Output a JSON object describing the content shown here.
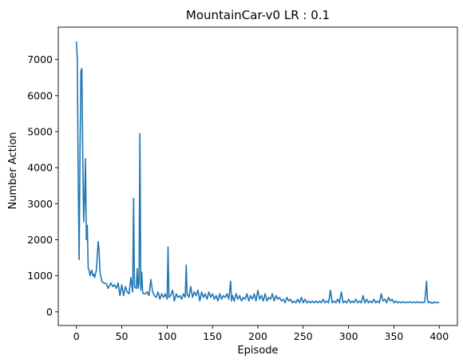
{
  "chart_data": {
    "type": "line",
    "title": "MountainCar-v0 LR : 0.1",
    "xlabel": "Episode",
    "ylabel": "Number Action",
    "xlim": [
      -20,
      420
    ],
    "ylim": [
      -380,
      7900
    ],
    "xticks": [
      0,
      50,
      100,
      150,
      200,
      250,
      300,
      350,
      400
    ],
    "yticks": [
      0,
      1000,
      2000,
      3000,
      4000,
      5000,
      6000,
      7000
    ],
    "grid": false,
    "legend": "none",
    "series": [
      {
        "color": "#1f77b4",
        "points": [
          [
            0,
            7500
          ],
          [
            1,
            7000
          ],
          [
            2,
            3600
          ],
          [
            3,
            1450
          ],
          [
            4,
            4500
          ],
          [
            5,
            6700
          ],
          [
            6,
            6750
          ],
          [
            7,
            4300
          ],
          [
            8,
            2500
          ],
          [
            9,
            3100
          ],
          [
            10,
            4250
          ],
          [
            11,
            2000
          ],
          [
            12,
            2400
          ],
          [
            13,
            1200
          ],
          [
            14,
            1150
          ],
          [
            15,
            1000
          ],
          [
            16,
            1100
          ],
          [
            17,
            1150
          ],
          [
            18,
            1000
          ],
          [
            19,
            1050
          ],
          [
            20,
            950
          ],
          [
            22,
            1150
          ],
          [
            24,
            1950
          ],
          [
            25,
            1700
          ],
          [
            26,
            1100
          ],
          [
            28,
            850
          ],
          [
            30,
            800
          ],
          [
            33,
            780
          ],
          [
            35,
            650
          ],
          [
            38,
            800
          ],
          [
            40,
            700
          ],
          [
            42,
            750
          ],
          [
            44,
            650
          ],
          [
            46,
            800
          ],
          [
            48,
            450
          ],
          [
            50,
            750
          ],
          [
            52,
            450
          ],
          [
            54,
            700
          ],
          [
            56,
            550
          ],
          [
            58,
            500
          ],
          [
            60,
            950
          ],
          [
            62,
            550
          ],
          [
            63,
            3150
          ],
          [
            64,
            700
          ],
          [
            66,
            650
          ],
          [
            67,
            1200
          ],
          [
            68,
            650
          ],
          [
            69,
            800
          ],
          [
            70,
            4950
          ],
          [
            71,
            600
          ],
          [
            72,
            1100
          ],
          [
            73,
            550
          ],
          [
            74,
            500
          ],
          [
            76,
            500
          ],
          [
            78,
            550
          ],
          [
            80,
            450
          ],
          [
            82,
            900
          ],
          [
            84,
            550
          ],
          [
            86,
            450
          ],
          [
            88,
            400
          ],
          [
            90,
            550
          ],
          [
            92,
            350
          ],
          [
            94,
            500
          ],
          [
            96,
            400
          ],
          [
            98,
            500
          ],
          [
            100,
            350
          ],
          [
            101,
            1800
          ],
          [
            102,
            400
          ],
          [
            104,
            450
          ],
          [
            106,
            600
          ],
          [
            108,
            300
          ],
          [
            110,
            500
          ],
          [
            112,
            400
          ],
          [
            114,
            450
          ],
          [
            116,
            350
          ],
          [
            118,
            500
          ],
          [
            120,
            400
          ],
          [
            121,
            1300
          ],
          [
            122,
            500
          ],
          [
            124,
            400
          ],
          [
            126,
            700
          ],
          [
            128,
            400
          ],
          [
            130,
            550
          ],
          [
            132,
            450
          ],
          [
            134,
            600
          ],
          [
            136,
            300
          ],
          [
            138,
            550
          ],
          [
            140,
            400
          ],
          [
            142,
            500
          ],
          [
            144,
            350
          ],
          [
            146,
            550
          ],
          [
            148,
            400
          ],
          [
            150,
            500
          ],
          [
            152,
            350
          ],
          [
            154,
            450
          ],
          [
            156,
            300
          ],
          [
            158,
            500
          ],
          [
            160,
            350
          ],
          [
            162,
            450
          ],
          [
            164,
            400
          ],
          [
            166,
            500
          ],
          [
            168,
            350
          ],
          [
            170,
            850
          ],
          [
            171,
            300
          ],
          [
            172,
            450
          ],
          [
            174,
            300
          ],
          [
            176,
            500
          ],
          [
            178,
            350
          ],
          [
            180,
            450
          ],
          [
            182,
            300
          ],
          [
            184,
            400
          ],
          [
            186,
            350
          ],
          [
            188,
            500
          ],
          [
            190,
            300
          ],
          [
            192,
            450
          ],
          [
            194,
            350
          ],
          [
            196,
            500
          ],
          [
            198,
            300
          ],
          [
            200,
            600
          ],
          [
            202,
            350
          ],
          [
            204,
            450
          ],
          [
            206,
            300
          ],
          [
            208,
            500
          ],
          [
            210,
            300
          ],
          [
            212,
            400
          ],
          [
            214,
            350
          ],
          [
            216,
            500
          ],
          [
            218,
            300
          ],
          [
            220,
            450
          ],
          [
            222,
            350
          ],
          [
            224,
            400
          ],
          [
            226,
            300
          ],
          [
            228,
            350
          ],
          [
            230,
            250
          ],
          [
            232,
            400
          ],
          [
            234,
            300
          ],
          [
            236,
            350
          ],
          [
            238,
            250
          ],
          [
            240,
            300
          ],
          [
            242,
            250
          ],
          [
            244,
            350
          ],
          [
            246,
            250
          ],
          [
            248,
            400
          ],
          [
            250,
            250
          ],
          [
            252,
            350
          ],
          [
            254,
            250
          ],
          [
            256,
            300
          ],
          [
            258,
            250
          ],
          [
            260,
            300
          ],
          [
            262,
            250
          ],
          [
            264,
            300
          ],
          [
            266,
            250
          ],
          [
            268,
            300
          ],
          [
            270,
            250
          ],
          [
            272,
            350
          ],
          [
            274,
            250
          ],
          [
            276,
            300
          ],
          [
            278,
            250
          ],
          [
            280,
            600
          ],
          [
            282,
            250
          ],
          [
            284,
            300
          ],
          [
            286,
            250
          ],
          [
            288,
            350
          ],
          [
            290,
            250
          ],
          [
            292,
            550
          ],
          [
            294,
            250
          ],
          [
            296,
            300
          ],
          [
            298,
            250
          ],
          [
            300,
            350
          ],
          [
            302,
            250
          ],
          [
            304,
            300
          ],
          [
            306,
            250
          ],
          [
            308,
            350
          ],
          [
            310,
            250
          ],
          [
            312,
            300
          ],
          [
            314,
            250
          ],
          [
            316,
            450
          ],
          [
            318,
            250
          ],
          [
            320,
            350
          ],
          [
            322,
            250
          ],
          [
            324,
            300
          ],
          [
            326,
            250
          ],
          [
            328,
            350
          ],
          [
            330,
            250
          ],
          [
            332,
            300
          ],
          [
            334,
            250
          ],
          [
            336,
            500
          ],
          [
            338,
            300
          ],
          [
            340,
            350
          ],
          [
            342,
            250
          ],
          [
            344,
            400
          ],
          [
            346,
            300
          ],
          [
            348,
            350
          ],
          [
            350,
            250
          ],
          [
            352,
            300
          ],
          [
            354,
            250
          ],
          [
            356,
            280
          ],
          [
            358,
            250
          ],
          [
            360,
            280
          ],
          [
            362,
            250
          ],
          [
            364,
            270
          ],
          [
            366,
            250
          ],
          [
            368,
            280
          ],
          [
            370,
            250
          ],
          [
            372,
            270
          ],
          [
            374,
            250
          ],
          [
            376,
            280
          ],
          [
            378,
            250
          ],
          [
            380,
            270
          ],
          [
            382,
            250
          ],
          [
            384,
            270
          ],
          [
            386,
            850
          ],
          [
            387,
            350
          ],
          [
            388,
            250
          ],
          [
            390,
            280
          ],
          [
            392,
            230
          ],
          [
            394,
            270
          ],
          [
            396,
            250
          ],
          [
            398,
            260
          ],
          [
            400,
            250
          ]
        ]
      }
    ]
  }
}
